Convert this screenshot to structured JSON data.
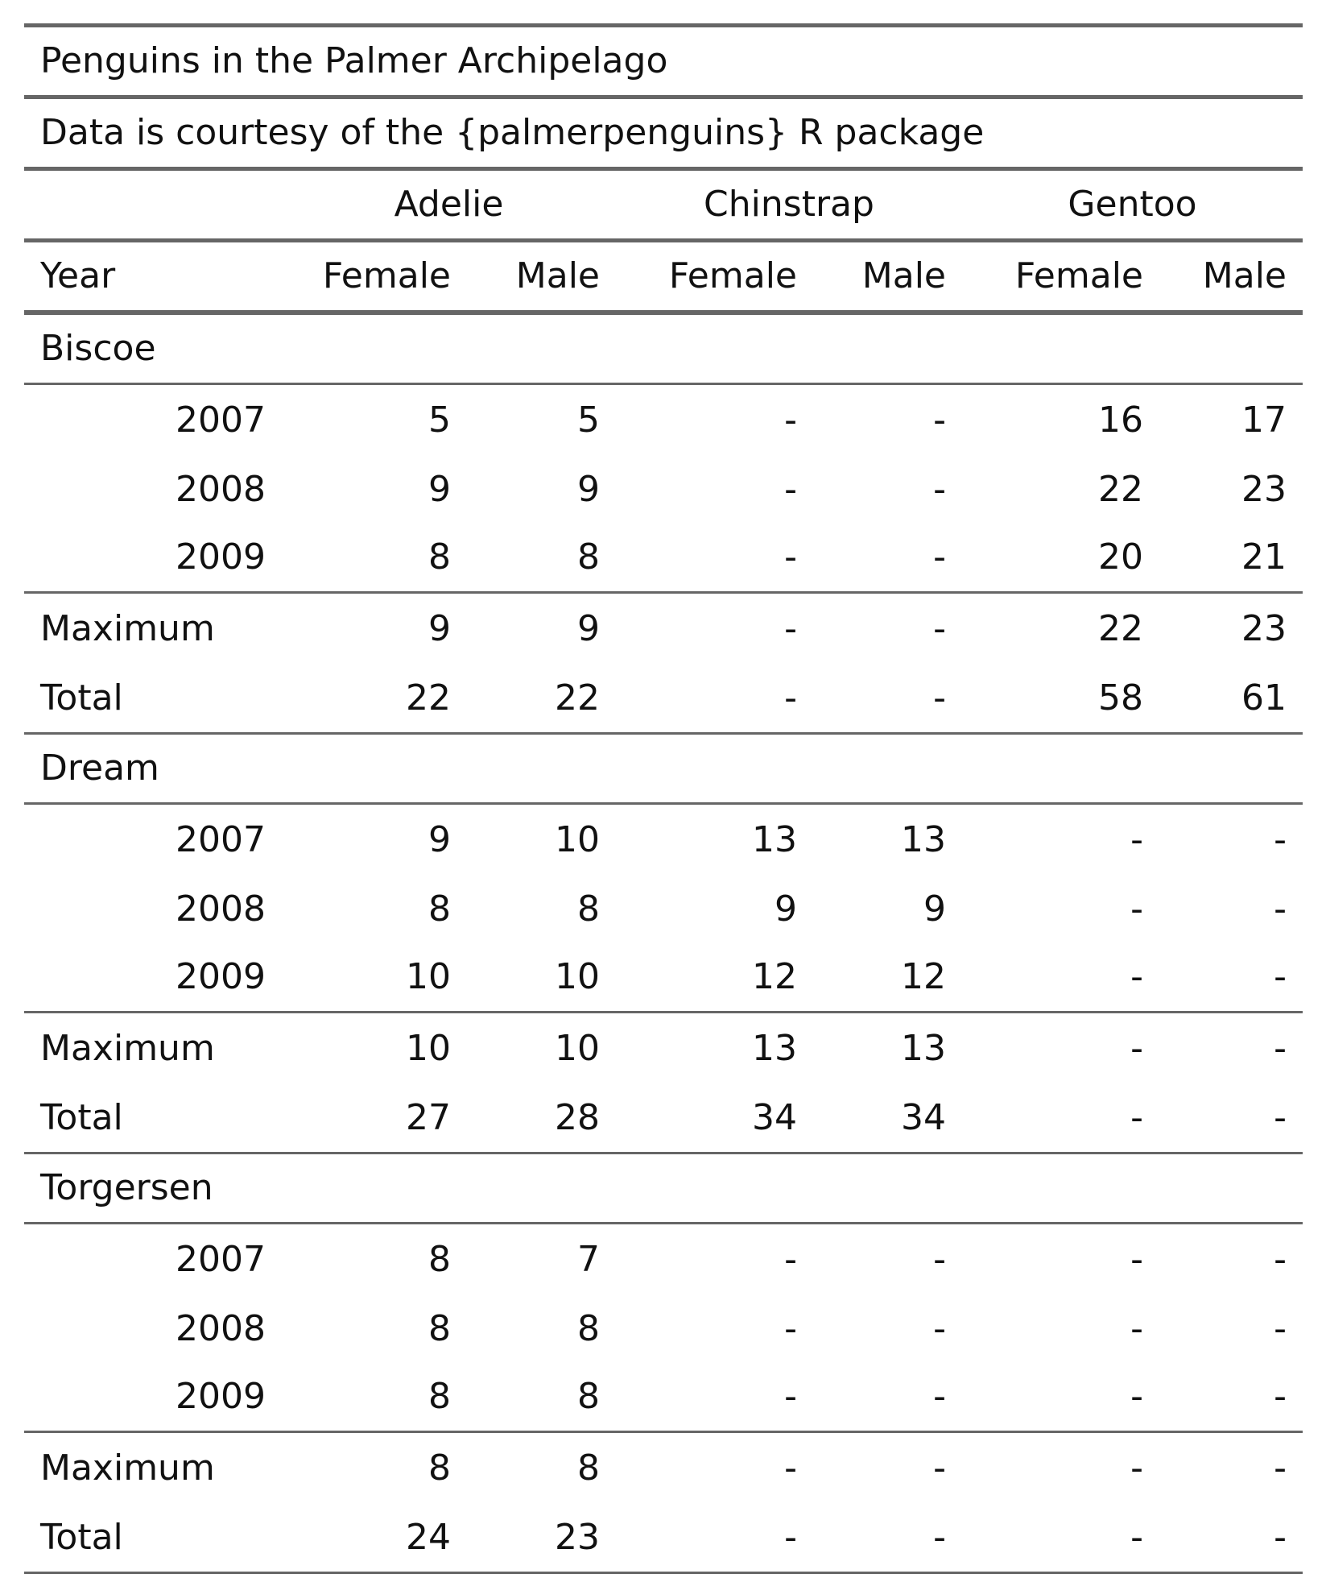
{
  "chart_data": {
    "type": "table",
    "title": "Penguins in the Palmer Archipelago",
    "subtitle": "Data is courtesy of the {palmerpenguins} R package",
    "stub_header": "Year",
    "spanners": [
      "Adelie",
      "Chinstrap",
      "Gentoo"
    ],
    "columns": [
      "Female",
      "Male",
      "Female",
      "Male",
      "Female",
      "Male"
    ],
    "missing_text": "-",
    "groups": [
      {
        "name": "Biscoe",
        "rows": [
          {
            "label": "2007",
            "values": [
              "5",
              "5",
              "-",
              "-",
              "16",
              "17"
            ]
          },
          {
            "label": "2008",
            "values": [
              "9",
              "9",
              "-",
              "-",
              "22",
              "23"
            ]
          },
          {
            "label": "2009",
            "values": [
              "8",
              "8",
              "-",
              "-",
              "20",
              "21"
            ]
          }
        ],
        "summaries": [
          {
            "label": "Maximum",
            "values": [
              "9",
              "9",
              "-",
              "-",
              "22",
              "23"
            ]
          },
          {
            "label": "Total",
            "values": [
              "22",
              "22",
              "-",
              "-",
              "58",
              "61"
            ]
          }
        ]
      },
      {
        "name": "Dream",
        "rows": [
          {
            "label": "2007",
            "values": [
              "9",
              "10",
              "13",
              "13",
              "-",
              "-"
            ]
          },
          {
            "label": "2008",
            "values": [
              "8",
              "8",
              "9",
              "9",
              "-",
              "-"
            ]
          },
          {
            "label": "2009",
            "values": [
              "10",
              "10",
              "12",
              "12",
              "-",
              "-"
            ]
          }
        ],
        "summaries": [
          {
            "label": "Maximum",
            "values": [
              "10",
              "10",
              "13",
              "13",
              "-",
              "-"
            ]
          },
          {
            "label": "Total",
            "values": [
              "27",
              "28",
              "34",
              "34",
              "-",
              "-"
            ]
          }
        ]
      },
      {
        "name": "Torgersen",
        "rows": [
          {
            "label": "2007",
            "values": [
              "8",
              "7",
              "-",
              "-",
              "-",
              "-"
            ]
          },
          {
            "label": "2008",
            "values": [
              "8",
              "8",
              "-",
              "-",
              "-",
              "-"
            ]
          },
          {
            "label": "2009",
            "values": [
              "8",
              "8",
              "-",
              "-",
              "-",
              "-"
            ]
          }
        ],
        "summaries": [
          {
            "label": "Maximum",
            "values": [
              "8",
              "8",
              "-",
              "-",
              "-",
              "-"
            ]
          },
          {
            "label": "Total",
            "values": [
              "24",
              "23",
              "-",
              "-",
              "-",
              "-"
            ]
          }
        ]
      }
    ]
  }
}
